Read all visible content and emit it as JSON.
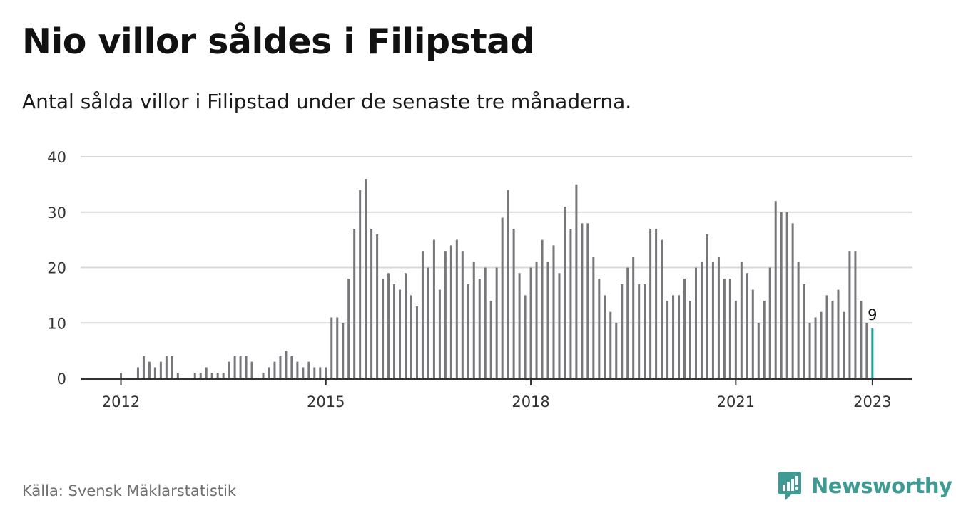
{
  "header": {
    "title": "Nio villor såldes i Filipstad",
    "subtitle": "Antal sålda villor i Filipstad under de senaste tre månaderna."
  },
  "footer": {
    "source": "Källa: Svensk Mäklarstatistik",
    "brand_name": "Newsworthy"
  },
  "colors": {
    "bar": "#76767b",
    "highlight": "#14a09a",
    "grid": "#d9d9d9",
    "axis": "#333333",
    "brand": "#3f9a93"
  },
  "chart_data": {
    "type": "bar",
    "title": "Nio villor såldes i Filipstad",
    "subtitle": "Antal sålda villor i Filipstad under de senaste tre månaderna.",
    "xlabel": "",
    "ylabel": "",
    "ylim": [
      0,
      40
    ],
    "yticks": [
      0,
      10,
      20,
      30,
      40
    ],
    "grid": true,
    "legend": "none",
    "x_tick_labels": [
      {
        "label": "2012",
        "index": 0
      },
      {
        "label": "2015",
        "index": 36
      },
      {
        "label": "2018",
        "index": 72
      },
      {
        "label": "2021",
        "index": 108
      },
      {
        "label": "2023",
        "index": 132
      }
    ],
    "start": "2012-01",
    "end": "2023-01",
    "values": [
      1,
      0,
      0,
      2,
      4,
      3,
      2,
      3,
      4,
      4,
      1,
      0,
      0,
      1,
      1,
      2,
      1,
      1,
      1,
      3,
      4,
      4,
      4,
      3,
      0,
      1,
      2,
      3,
      4,
      5,
      4,
      3,
      2,
      3,
      2,
      2,
      2,
      11,
      11,
      10,
      18,
      27,
      34,
      36,
      27,
      26,
      18,
      19,
      17,
      16,
      19,
      15,
      13,
      23,
      20,
      25,
      16,
      23,
      24,
      25,
      23,
      17,
      21,
      18,
      20,
      14,
      20,
      29,
      34,
      27,
      19,
      15,
      20,
      21,
      25,
      21,
      24,
      19,
      31,
      27,
      35,
      28,
      28,
      22,
      18,
      15,
      12,
      10,
      17,
      20,
      22,
      17,
      17,
      27,
      27,
      25,
      14,
      15,
      15,
      18,
      14,
      20,
      21,
      26,
      21,
      22,
      18,
      18,
      14,
      21,
      19,
      16,
      10,
      14,
      20,
      32,
      30,
      30,
      28,
      21,
      17,
      10,
      11,
      12,
      15,
      14,
      16,
      12,
      23,
      23,
      14,
      10,
      9
    ],
    "highlight": {
      "index": 132,
      "value": 9,
      "label": "9"
    }
  }
}
